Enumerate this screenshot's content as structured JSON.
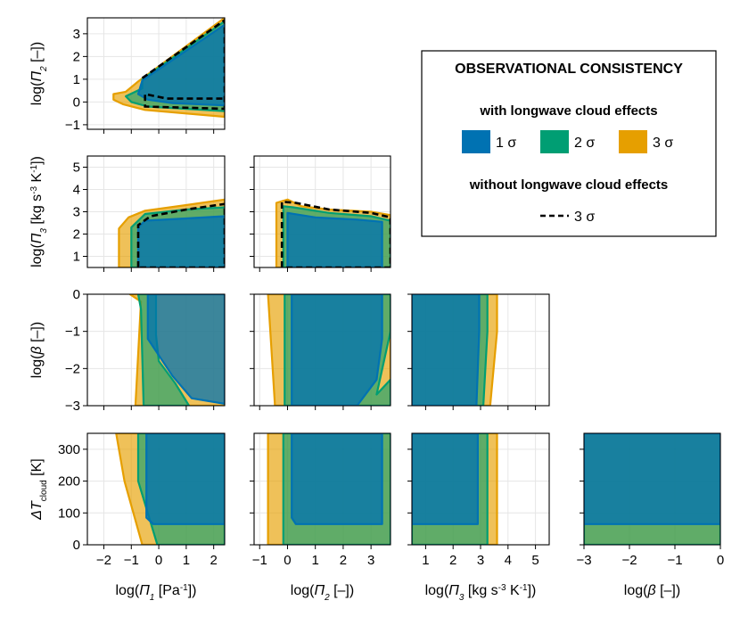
{
  "colors": {
    "s1": "#0072B2",
    "s2": "#009E73",
    "s3": "#E69F00",
    "dashed": "#000000",
    "grid": "#e6e6e6"
  },
  "legend": {
    "title": "OBSERVATIONAL CONSISTENCY",
    "section1": "with longwave cloud effects",
    "items": [
      {
        "label": "1 σ",
        "color": "#0072B2"
      },
      {
        "label": "2 σ",
        "color": "#009E73"
      },
      {
        "label": "3 σ",
        "color": "#E69F00"
      }
    ],
    "section2": "without longwave cloud effects",
    "dashed_label": "3 σ"
  },
  "chart_data": {
    "type": "area",
    "variables": [
      {
        "key": "p1",
        "label": "log(Π1 [Pa-1])",
        "range": [
          -2.6,
          2.4
        ],
        "ticks": [
          -2,
          -1,
          0,
          1,
          2
        ],
        "tick_labels": [
          "−2",
          "−1",
          "0",
          "1",
          "2"
        ]
      },
      {
        "key": "p2",
        "label": "log(Π2 [–])",
        "range": [
          -1.2,
          3.7
        ],
        "ticks": [
          -1,
          0,
          1,
          2,
          3
        ],
        "tick_labels": [
          "−1",
          "0",
          "1",
          "2",
          "3"
        ]
      },
      {
        "key": "p3",
        "label": "log(Π3 [kg s-3 K-1])",
        "range": [
          0.5,
          5.5
        ],
        "ticks": [
          1,
          2,
          3,
          4,
          5
        ],
        "tick_labels": [
          "1",
          "2",
          "3",
          "4",
          "5"
        ]
      },
      {
        "key": "beta",
        "label": "log(β [–])",
        "range": [
          -3,
          0
        ],
        "ticks": [
          -3,
          -2,
          -1,
          0
        ],
        "tick_labels": [
          "−3",
          "−2",
          "−1",
          "0"
        ]
      },
      {
        "key": "dT",
        "label": "ΔTcloud [K]",
        "range": [
          0,
          350
        ],
        "ticks": [
          0,
          100,
          200,
          300
        ],
        "tick_labels": [
          "0",
          "100",
          "200",
          "300"
        ]
      }
    ],
    "panels": [
      {
        "x": "p1",
        "y": "p2",
        "regions": {
          "3": [
            [
              -1.65,
              0.1
            ],
            [
              -1.65,
              0.35
            ],
            [
              -1.2,
              0.45
            ],
            [
              -0.75,
              0.9
            ],
            [
              2.4,
              3.7
            ],
            [
              2.4,
              -0.65
            ],
            [
              -0.5,
              -0.35
            ],
            [
              -1.3,
              -0.1
            ]
          ],
          "2": [
            [
              -1.2,
              0.25
            ],
            [
              -0.6,
              0.6
            ],
            [
              -0.6,
              1.0
            ],
            [
              2.4,
              3.55
            ],
            [
              2.4,
              -0.4
            ],
            [
              -0.4,
              -0.2
            ],
            [
              -1.0,
              0.0
            ]
          ],
          "1": [
            [
              -0.75,
              0.35
            ],
            [
              -0.6,
              0.95
            ],
            [
              2.4,
              3.4
            ],
            [
              2.4,
              -0.15
            ],
            [
              0.5,
              -0.05
            ],
            [
              -0.4,
              0.1
            ]
          ]
        },
        "dashed": [
          [
            -0.6,
            1.05
          ],
          [
            2.4,
            3.6
          ],
          [
            2.4,
            -0.3
          ],
          [
            -0.5,
            -0.2
          ],
          [
            -0.5,
            0.35
          ],
          [
            0.3,
            0.15
          ],
          [
            2.4,
            0.15
          ]
        ]
      },
      {
        "x": "p1",
        "y": "p3",
        "regions": {
          "3": [
            [
              -1.45,
              0.5
            ],
            [
              -1.45,
              2.25
            ],
            [
              -1.1,
              2.75
            ],
            [
              -0.5,
              3.05
            ],
            [
              1.0,
              3.3
            ],
            [
              2.4,
              3.55
            ],
            [
              2.4,
              0.5
            ]
          ],
          "2": [
            [
              -1.0,
              0.5
            ],
            [
              -1.0,
              2.3
            ],
            [
              -0.5,
              2.9
            ],
            [
              1.0,
              3.1
            ],
            [
              2.4,
              3.2
            ],
            [
              2.4,
              0.5
            ]
          ],
          "1": [
            [
              -0.75,
              0.5
            ],
            [
              -0.75,
              2.3
            ],
            [
              -0.5,
              2.6
            ],
            [
              1.0,
              2.7
            ],
            [
              2.4,
              2.8
            ],
            [
              2.4,
              0.5
            ]
          ]
        },
        "dashed": [
          [
            -0.75,
            0.5
          ],
          [
            -0.75,
            2.4
          ],
          [
            -0.3,
            2.8
          ],
          [
            1.0,
            3.1
          ],
          [
            2.4,
            3.35
          ],
          [
            2.4,
            0.5
          ],
          [
            -0.75,
            0.5
          ]
        ]
      },
      {
        "x": "p2",
        "y": "p3",
        "regions": {
          "3": [
            [
              -0.4,
              0.5
            ],
            [
              -0.4,
              3.4
            ],
            [
              0.0,
              3.55
            ],
            [
              0.5,
              3.25
            ],
            [
              1.5,
              3.1
            ],
            [
              3.0,
              3.0
            ],
            [
              3.7,
              2.85
            ],
            [
              3.7,
              0.5
            ]
          ],
          "2": [
            [
              -0.15,
              0.5
            ],
            [
              -0.15,
              3.25
            ],
            [
              0.2,
              3.2
            ],
            [
              1.5,
              2.95
            ],
            [
              3.0,
              2.8
            ],
            [
              3.7,
              2.6
            ],
            [
              3.7,
              0.5
            ]
          ],
          "1": [
            [
              0.0,
              0.5
            ],
            [
              0.0,
              2.95
            ],
            [
              1.0,
              2.75
            ],
            [
              2.5,
              2.65
            ],
            [
              3.4,
              2.55
            ],
            [
              3.4,
              0.5
            ]
          ]
        },
        "dashed": [
          [
            -0.2,
            0.5
          ],
          [
            -0.2,
            3.45
          ],
          [
            0.3,
            3.4
          ],
          [
            1.5,
            3.1
          ],
          [
            3.0,
            2.95
          ],
          [
            3.7,
            2.75
          ],
          [
            3.7,
            0.5
          ],
          [
            -0.2,
            0.5
          ]
        ]
      },
      {
        "x": "p1",
        "y": "beta",
        "regions": {
          "3": [
            [
              -1.05,
              0
            ],
            [
              -0.65,
              -0.2
            ],
            [
              -0.85,
              -3
            ],
            [
              2.4,
              -3
            ],
            [
              2.4,
              0
            ]
          ],
          "2": [
            [
              -0.75,
              0
            ],
            [
              -0.65,
              -0.4
            ],
            [
              -0.55,
              -3
            ],
            [
              1.1,
              -3
            ],
            [
              0.6,
              -2.4
            ],
            [
              0.0,
              -1.8
            ],
            [
              -0.1,
              -1.1
            ],
            [
              -0.1,
              0
            ]
          ],
          "1": [
            [
              -0.4,
              0
            ],
            [
              -0.4,
              -1.2
            ],
            [
              0.5,
              -2.2
            ],
            [
              1.2,
              -2.8
            ],
            [
              2.4,
              -2.95
            ],
            [
              2.4,
              0
            ]
          ]
        }
      },
      {
        "x": "p2",
        "y": "beta",
        "regions": {
          "3": [
            [
              -0.7,
              0
            ],
            [
              -0.45,
              -3
            ],
            [
              3.7,
              -3
            ],
            [
              3.7,
              0
            ]
          ],
          "2": [
            [
              -0.1,
              0
            ],
            [
              -0.1,
              -3
            ],
            [
              3.7,
              -3
            ],
            [
              3.7,
              -2.3
            ],
            [
              3.2,
              -2.7
            ],
            [
              3.7,
              -1.0
            ],
            [
              3.7,
              0
            ]
          ],
          "1": [
            [
              0.15,
              0
            ],
            [
              0.15,
              -3
            ],
            [
              2.5,
              -3
            ],
            [
              3.2,
              -2.3
            ],
            [
              3.4,
              -1.2
            ],
            [
              3.4,
              0
            ]
          ]
        }
      },
      {
        "x": "p3",
        "y": "beta",
        "regions": {
          "3": [
            [
              0.5,
              0
            ],
            [
              0.5,
              -3
            ],
            [
              3.35,
              -3
            ],
            [
              3.6,
              -1.0
            ],
            [
              3.6,
              0
            ]
          ],
          "2": [
            [
              0.5,
              0
            ],
            [
              0.5,
              -3
            ],
            [
              3.1,
              -3
            ],
            [
              3.25,
              -1.0
            ],
            [
              3.25,
              0
            ]
          ],
          "1": [
            [
              0.5,
              0
            ],
            [
              0.5,
              -3
            ],
            [
              2.85,
              -3
            ],
            [
              2.95,
              -1.0
            ],
            [
              2.95,
              0
            ]
          ]
        }
      },
      {
        "x": "p1",
        "y": "dT",
        "regions": {
          "3": [
            [
              -1.55,
              350
            ],
            [
              -1.25,
              200
            ],
            [
              -0.6,
              0
            ],
            [
              2.4,
              0
            ],
            [
              2.4,
              350
            ]
          ],
          "2": [
            [
              -0.75,
              350
            ],
            [
              -0.75,
              200
            ],
            [
              -0.05,
              0
            ],
            [
              2.4,
              0
            ],
            [
              2.4,
              350
            ]
          ],
          "1": [
            [
              -0.45,
              350
            ],
            [
              -0.45,
              85
            ],
            [
              -0.2,
              65
            ],
            [
              2.4,
              65
            ],
            [
              2.4,
              350
            ]
          ]
        }
      },
      {
        "x": "p2",
        "y": "dT",
        "regions": {
          "3": [
            [
              -0.7,
              350
            ],
            [
              -0.7,
              0
            ],
            [
              3.7,
              0
            ],
            [
              3.7,
              350
            ]
          ],
          "2": [
            [
              -0.15,
              350
            ],
            [
              -0.15,
              0
            ],
            [
              3.7,
              0
            ],
            [
              3.7,
              350
            ]
          ],
          "1": [
            [
              0.15,
              350
            ],
            [
              0.15,
              85
            ],
            [
              0.3,
              65
            ],
            [
              3.4,
              65
            ],
            [
              3.4,
              350
            ]
          ]
        }
      },
      {
        "x": "p3",
        "y": "dT",
        "regions": {
          "3": [
            [
              0.5,
              350
            ],
            [
              0.5,
              0
            ],
            [
              3.6,
              0
            ],
            [
              3.6,
              350
            ]
          ],
          "2": [
            [
              0.5,
              350
            ],
            [
              0.5,
              0
            ],
            [
              3.25,
              0
            ],
            [
              3.25,
              350
            ]
          ],
          "1": [
            [
              0.5,
              350
            ],
            [
              0.5,
              65
            ],
            [
              2.9,
              65
            ],
            [
              2.9,
              350
            ]
          ]
        }
      },
      {
        "x": "beta",
        "y": "dT",
        "regions": {
          "3": [
            [
              -3,
              350
            ],
            [
              -3,
              0
            ],
            [
              0,
              0
            ],
            [
              0,
              350
            ]
          ],
          "2": [
            [
              -3,
              350
            ],
            [
              -3,
              0
            ],
            [
              0,
              0
            ],
            [
              0,
              350
            ]
          ],
          "1": [
            [
              -3,
              350
            ],
            [
              -3,
              65
            ],
            [
              0,
              65
            ],
            [
              0,
              350
            ]
          ]
        }
      }
    ]
  }
}
